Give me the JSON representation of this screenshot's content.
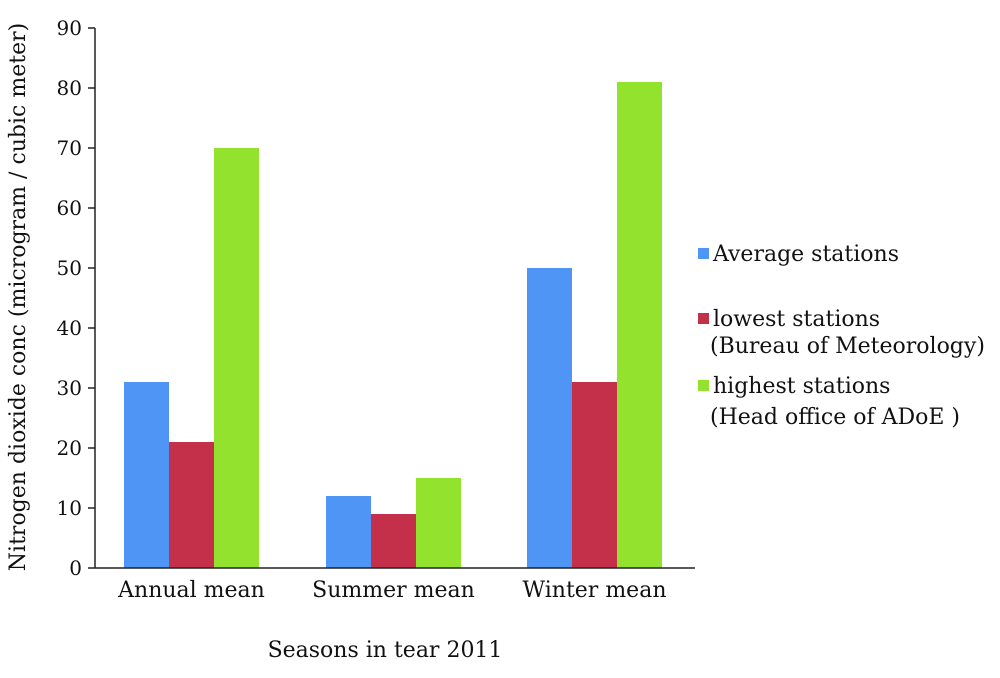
{
  "chart_data": {
    "type": "bar",
    "title": "",
    "xlabel": "Seasons in tear 2011",
    "ylabel": "Nitrogen dioxide conc (microgram / cubic meter)",
    "ylim": [
      0,
      90
    ],
    "yticks": [
      "0",
      "10",
      "20",
      "30",
      "40",
      "50",
      "60",
      "70",
      "80",
      "90"
    ],
    "categories": [
      "Annual mean",
      "Summer mean",
      "Winter mean"
    ],
    "series": [
      {
        "name": "Average stations",
        "color": "#4F95F5",
        "values": [
          31,
          12,
          50
        ]
      },
      {
        "name": "lowest stations (Bureau of Meteorology)",
        "color": "#C4304A",
        "values": [
          21,
          9,
          31
        ]
      },
      {
        "name": "highest stations (Head office of ADoE )",
        "color": "#92E22E",
        "values": [
          70,
          15,
          81
        ]
      }
    ],
    "legend": {
      "position": "right",
      "entries": [
        {
          "line1": "Average stations",
          "line2": ""
        },
        {
          "line1": "lowest stations",
          "line2": "(Bureau of Meteorology)"
        },
        {
          "line1": "highest stations",
          "line2": "(Head office of ADoE )"
        }
      ]
    },
    "grid": false
  }
}
